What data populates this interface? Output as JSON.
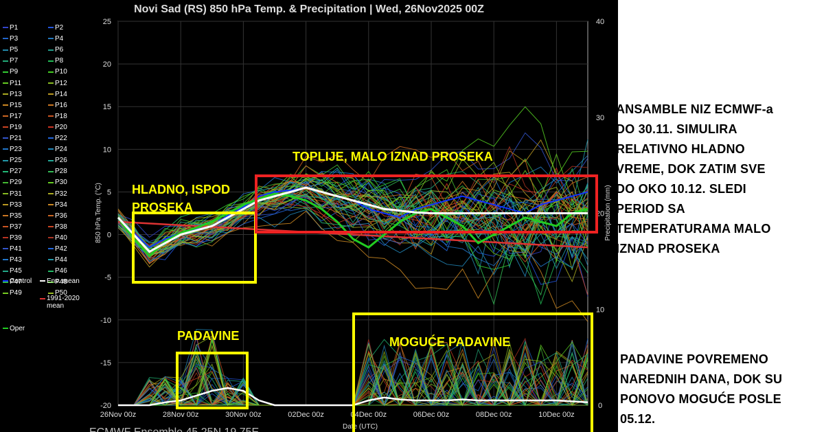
{
  "chart_data": {
    "type": "line",
    "title": "Novi Sad  (RS)  850 hPa Temp. & Precipitation | Wed, 26Nov2025 00Z",
    "subtitle": "ECMWF Ensemble  45.25N  19.75E",
    "ylabel": "850 hPa Temp. (°C)",
    "y2label": "Precipitation (mm)",
    "xlabel": "Date (UTC)",
    "ylim": [
      -20,
      25
    ],
    "y2lim": [
      0,
      40
    ],
    "yticks": [
      "25",
      "20",
      "15",
      "10",
      "5",
      "0",
      "-5",
      "-10",
      "-15",
      "-20"
    ],
    "y2ticks": [
      "40",
      "30",
      "20",
      "10",
      "0"
    ],
    "xticks": [
      "26Nov 00z",
      "28Nov 00z",
      "30Nov 00z",
      "02Dec 00z",
      "04Dec 00z",
      "06Dec 00z",
      "08Dec 00z",
      "10Dec 00z"
    ],
    "grid": true,
    "legend_position": "left",
    "legend": [
      "P1",
      "P2",
      "P3",
      "P4",
      "P5",
      "P6",
      "P7",
      "P8",
      "P9",
      "P10",
      "P11",
      "P12",
      "P13",
      "P14",
      "P15",
      "P16",
      "P17",
      "P18",
      "P19",
      "P20",
      "P21",
      "P22",
      "P23",
      "P24",
      "P25",
      "P26",
      "P27",
      "P28",
      "P29",
      "P30",
      "P31",
      "P32",
      "P33",
      "P34",
      "P35",
      "P36",
      "P37",
      "P38",
      "P39",
      "P40",
      "P41",
      "P42",
      "P43",
      "P44",
      "P45",
      "P46",
      "P47",
      "P48",
      "P49",
      "P50",
      "Control",
      "Ens. mean",
      "Oper",
      "1991-2020 mean"
    ],
    "legend_colors": [
      "#3344cc",
      "#2255dd",
      "#2266cc",
      "#2277bb",
      "#2288aa",
      "#229988",
      "#22aa77",
      "#22bb55",
      "#33cc33",
      "#44cc22",
      "#66cc22",
      "#88bb22",
      "#aaaa22",
      "#bb9922",
      "#cc8822",
      "#cc7722",
      "#cc6622",
      "#cc5522",
      "#cc4422",
      "#cc3322",
      "#3355cc",
      "#2266dd",
      "#2277cc",
      "#2288bb",
      "#2299aa",
      "#22aa99",
      "#22bb77",
      "#33bb55",
      "#44bb33",
      "#66cc22",
      "#88bb22",
      "#aaaa22",
      "#bb9922",
      "#cc8822",
      "#cc7722",
      "#cc6622",
      "#cc5522",
      "#cc4422",
      "#bb3322",
      "#aa3322",
      "#3355cc",
      "#2266dd",
      "#2277cc",
      "#2299aa",
      "#22aa88",
      "#22bb66",
      "#33bb44",
      "#55cc22",
      "#77cc22",
      "#99bb22",
      "#1133ff",
      "#ffffff",
      "#22cc22",
      "#dd3333"
    ],
    "x_days": [
      0,
      0.5,
      1,
      1.5,
      2,
      2.5,
      3,
      3.5,
      4,
      4.5,
      5,
      5.5,
      6,
      6.5,
      7,
      7.5,
      8,
      8.5,
      9,
      9.5,
      10,
      10.5,
      11,
      11.5,
      12,
      12.5,
      13,
      13.5,
      14,
      14.5,
      15
    ],
    "series": [
      {
        "name": "Ens. mean",
        "values": [
          2,
          0,
          -2,
          -1,
          0,
          0.5,
          1,
          2,
          3,
          4,
          4.5,
          5,
          5.5,
          5,
          4.5,
          4,
          3.5,
          3,
          2.8,
          2.6,
          2.5,
          2.5,
          2.5,
          2.5,
          2.5,
          2.5,
          2.5,
          2.5,
          2.5,
          2.5,
          2.5
        ]
      },
      {
        "name": "1991-2020 mean",
        "values": [
          1.5,
          1.4,
          1.3,
          1.2,
          1.1,
          1.0,
          0.9,
          0.8,
          0.7,
          0.6,
          0.5,
          0.4,
          0.3,
          0.2,
          0.1,
          0.0,
          -0.1,
          -0.2,
          -0.3,
          -0.4,
          -0.5,
          -0.6,
          -0.7,
          -0.8,
          -0.9,
          -1.0,
          -1.1,
          -1.2,
          -1.3,
          -1.4,
          -1.5
        ]
      },
      {
        "name": "Oper",
        "values": [
          2,
          -0.5,
          -2.5,
          -0.8,
          0.2,
          0.8,
          1.5,
          2.5,
          3.5,
          4.2,
          4.8,
          4.5,
          4,
          3,
          1.5,
          -0.5,
          -1.5,
          0,
          1.5,
          2.5,
          3,
          2,
          1,
          -1,
          0,
          1,
          2,
          1.5,
          1,
          2.5,
          3
        ]
      },
      {
        "name": "Control",
        "values": [
          2,
          0.2,
          -1.5,
          -0.5,
          0.2,
          0.6,
          1,
          2.2,
          3.2,
          4.5,
          5,
          5.2,
          5.5,
          5,
          4.5,
          4,
          3,
          2.5,
          2,
          3,
          3.5,
          4,
          4.5,
          4,
          3.5,
          3,
          2.5,
          3.5,
          4,
          4.5,
          5
        ]
      }
    ],
    "precip_mean": [
      0,
      0,
      0,
      0.3,
      0.5,
      1.0,
      1.5,
      1.8,
      1.5,
      0.5,
      0,
      0,
      0,
      0,
      0,
      0,
      0.5,
      0.8,
      0.6,
      0.5,
      0.5,
      0.5,
      0.6,
      0.5,
      0.5,
      0.5,
      0.5,
      0.5,
      0.5,
      0.4,
      0.3
    ]
  },
  "annotations": {
    "cold": [
      "HLADNO, ISPOD",
      "PROSEKA"
    ],
    "warm": "TOPLIJE, MALO IZNAD PROSEKA",
    "precip": "PADAVINE",
    "possible_precip": "MOGUĆE PADAVINE"
  },
  "notes": {
    "top": [
      "ANSAMBLE NIZ ECMWF-a",
      "DO 30.11. SIMULIRA",
      "RELATIVNO HLADNO",
      "VREME, DOK ZATIM SVE",
      "DO OKO 10.12. SLEDI",
      "PERIOD SA",
      "TEMPERATURAMA MALO",
      "IZNAD PROSEKA"
    ],
    "bottom": [
      "PADAVINE POVREMENO",
      "NAREDNIH DANA, DOK SU",
      "PONOVO MOGUĆE POSLE",
      "05.12."
    ]
  }
}
